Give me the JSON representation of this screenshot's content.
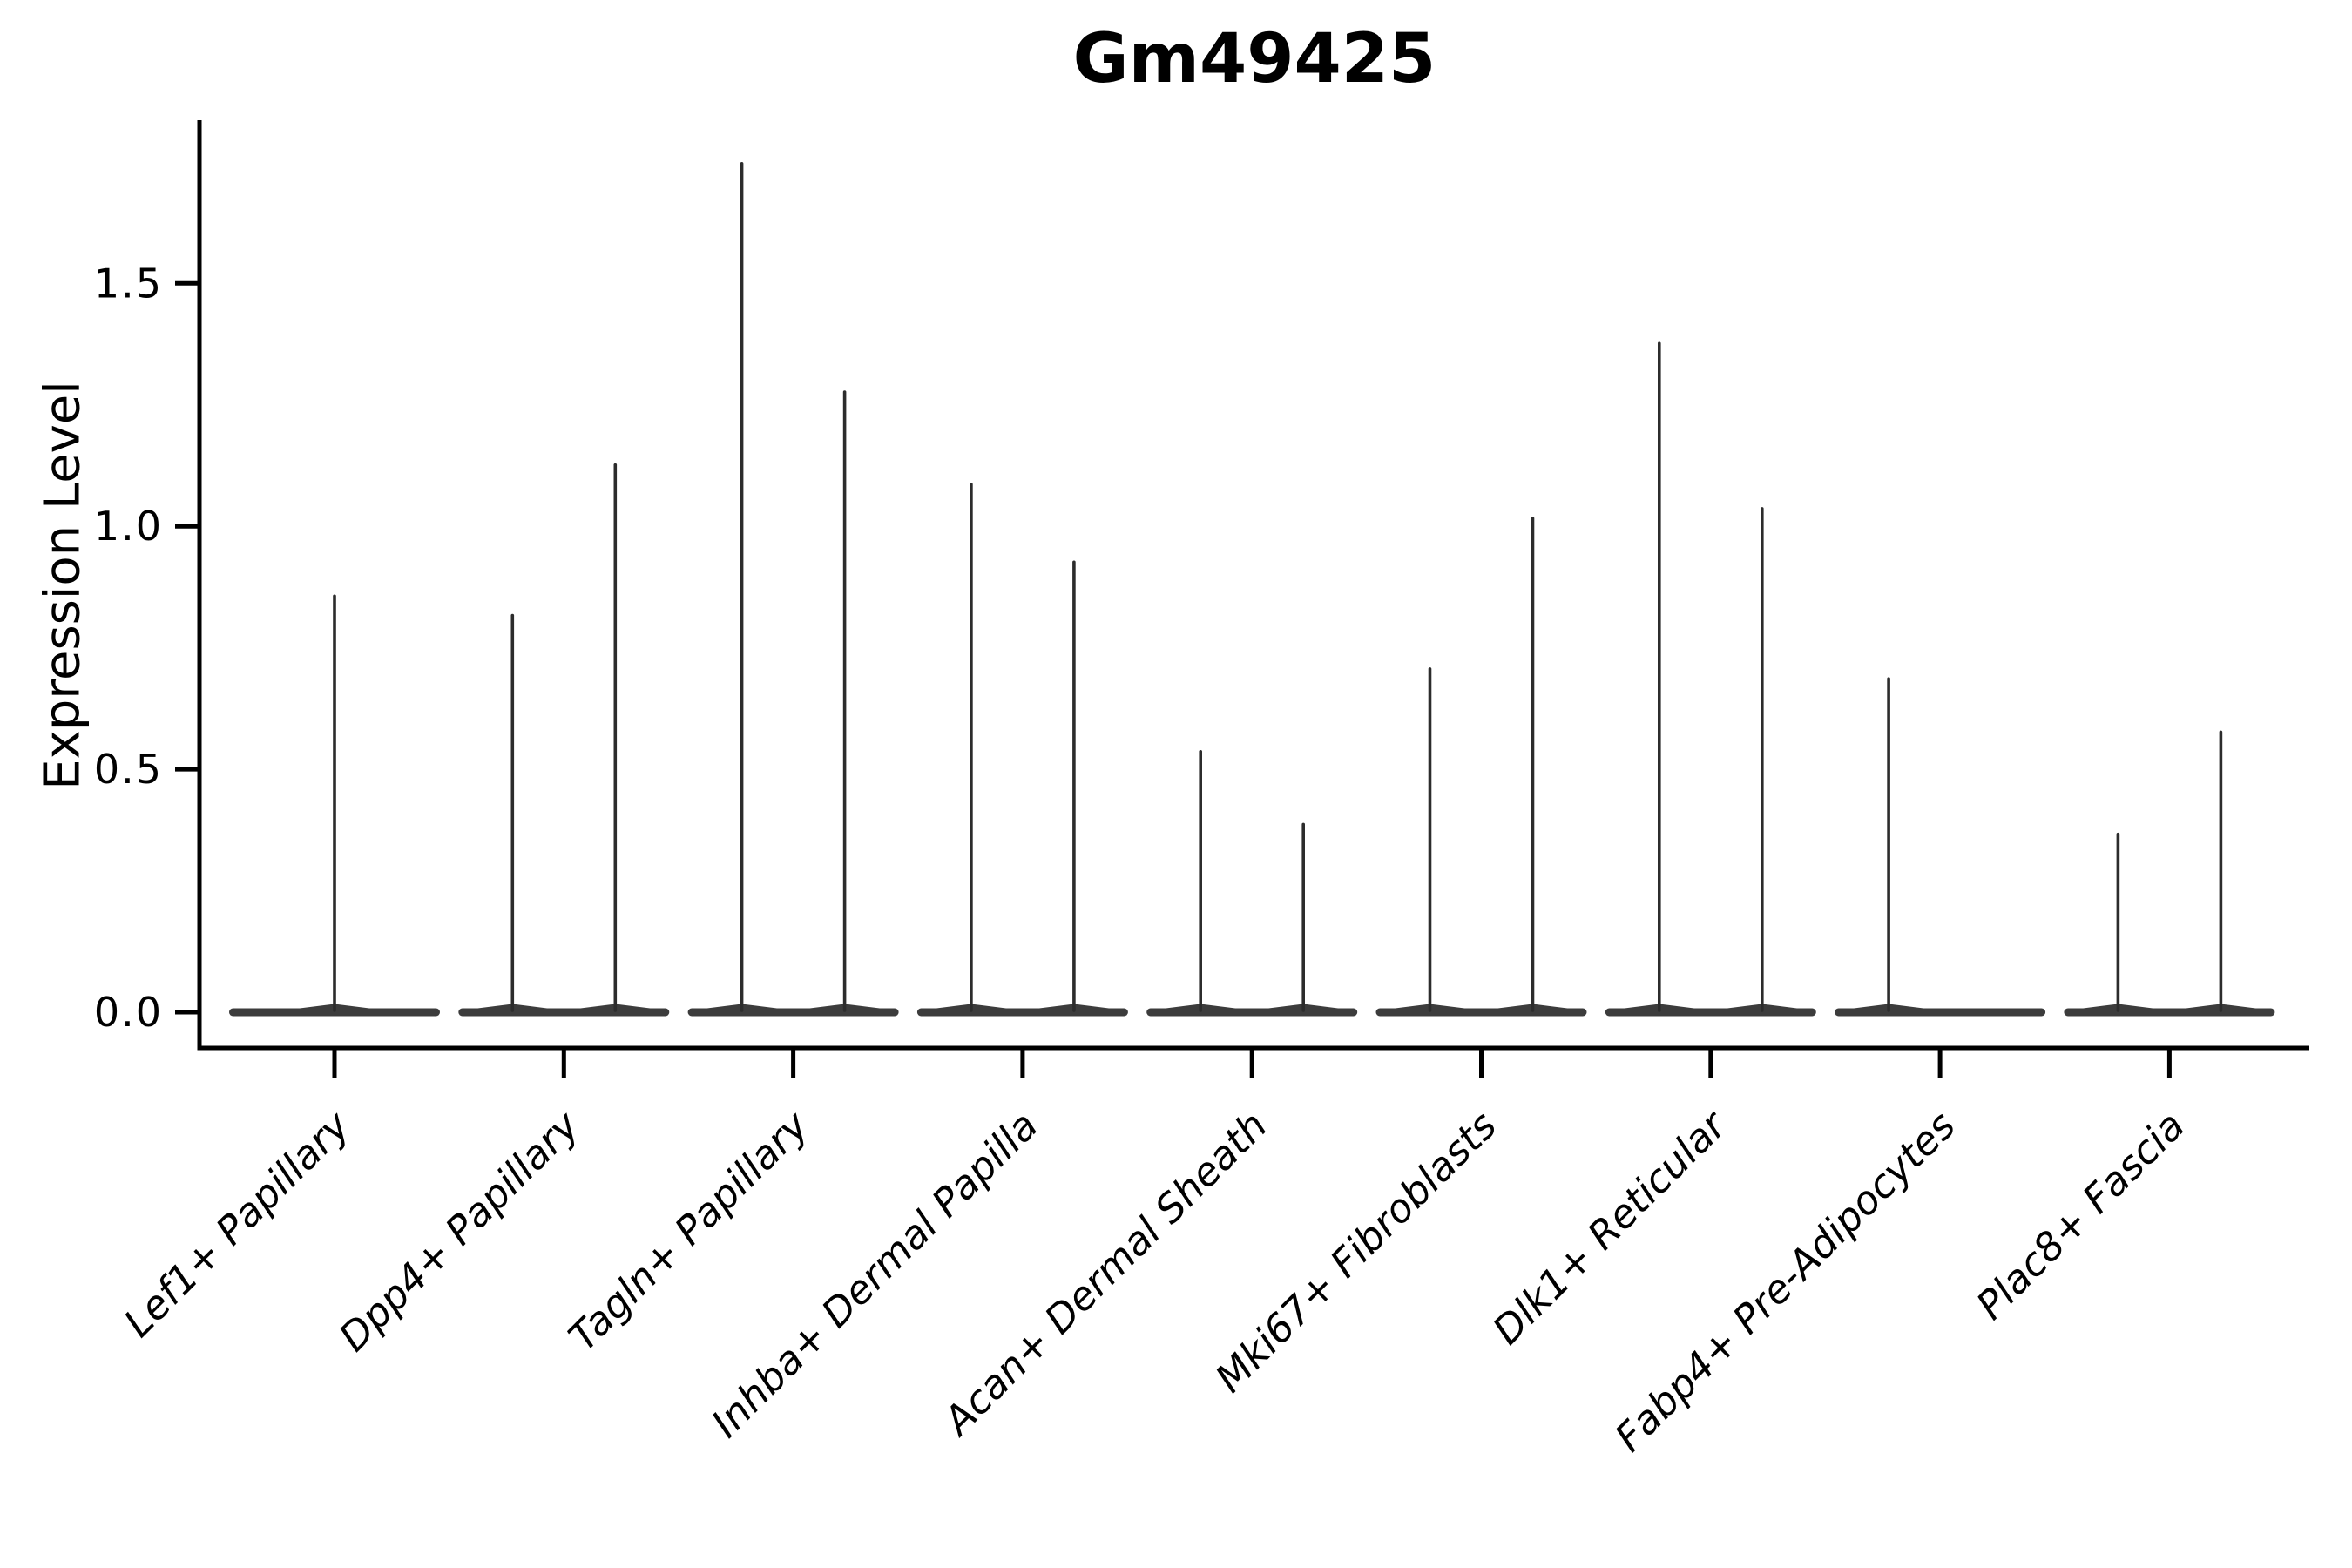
{
  "figure": {
    "background": "#ffffff"
  },
  "chart_data": {
    "type": "violin",
    "title": "Gm49425",
    "ylabel": "Expression Level",
    "xlabel": "",
    "yticks": [
      0.0,
      0.5,
      1.0,
      1.5
    ],
    "ytick_labels": [
      "0.0",
      "0.5",
      "1.0",
      "1.5"
    ],
    "ylim": [
      -0.07,
      1.84
    ],
    "grid": false,
    "legend_position": "none",
    "x_tick_rotation_deg": 45,
    "x_tick_font_style": "italic",
    "categories": [
      {
        "label": "Lef1+ Papillary",
        "violins": [
          {
            "position": "center",
            "max": 0.86
          }
        ]
      },
      {
        "label": "Dpp4+ Papillary",
        "violins": [
          {
            "position": "left",
            "max": 0.82
          },
          {
            "position": "right",
            "max": 1.13
          }
        ]
      },
      {
        "label": "Tagln+ Papillary",
        "violins": [
          {
            "position": "left",
            "max": 1.75
          },
          {
            "position": "right",
            "max": 1.28
          }
        ]
      },
      {
        "label": "Inhba+ Dermal Papilla",
        "violins": [
          {
            "position": "left",
            "max": 1.09
          },
          {
            "position": "right",
            "max": 0.93
          }
        ]
      },
      {
        "label": "Acan+ Dermal Sheath",
        "violins": [
          {
            "position": "left",
            "max": 0.54
          },
          {
            "position": "right",
            "max": 0.39
          }
        ]
      },
      {
        "label": "Mki67+ Fibroblasts",
        "violins": [
          {
            "position": "left",
            "max": 0.71
          },
          {
            "position": "right",
            "max": 1.02
          }
        ]
      },
      {
        "label": "Dlk1+ Reticular",
        "violins": [
          {
            "position": "left",
            "max": 1.38
          },
          {
            "position": "right",
            "max": 1.04
          }
        ]
      },
      {
        "label": "Fabp4+ Pre-Adipocytes",
        "violins": [
          {
            "position": "left",
            "max": 0.69
          }
        ]
      },
      {
        "label": "Plac8+ Fascia",
        "violins": [
          {
            "position": "left",
            "max": 0.37
          },
          {
            "position": "right",
            "max": 0.58
          }
        ]
      }
    ],
    "colors": {
      "violin": "#3c3c3c",
      "spike": "#2c2c2c",
      "axis": "#000000",
      "text": "#000000"
    }
  }
}
